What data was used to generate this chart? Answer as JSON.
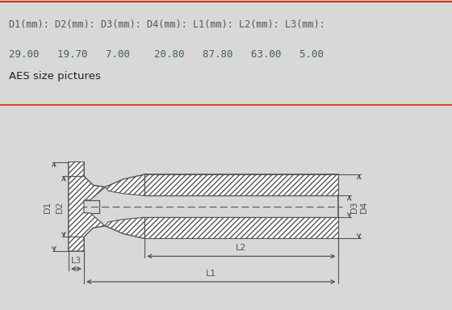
{
  "title_row": "D1(mm): D2(mm): D3(mm): D4(mm): L1(mm): L2(mm): L3(mm):",
  "values_row": "29.00   19.70   7.00    20.80   87.80   63.00   5.00",
  "section_label": "AES size pictures",
  "bg_color": "#d8d8d8",
  "header_bg": "#d8d8d8",
  "drawing_bg": "#f0f0f0",
  "top_border_color": "#cc3300",
  "header_text_color": "#555555",
  "value_text_color": "#446644",
  "label_text_color": "#333333",
  "line_color": "#555555",
  "hatch_color": "#888888",
  "dim_color": "#555555",
  "D1": 29.0,
  "D2": 19.7,
  "D3": 7.0,
  "D4": 20.8,
  "L1": 87.8,
  "L2": 63.0,
  "L3": 5.0
}
